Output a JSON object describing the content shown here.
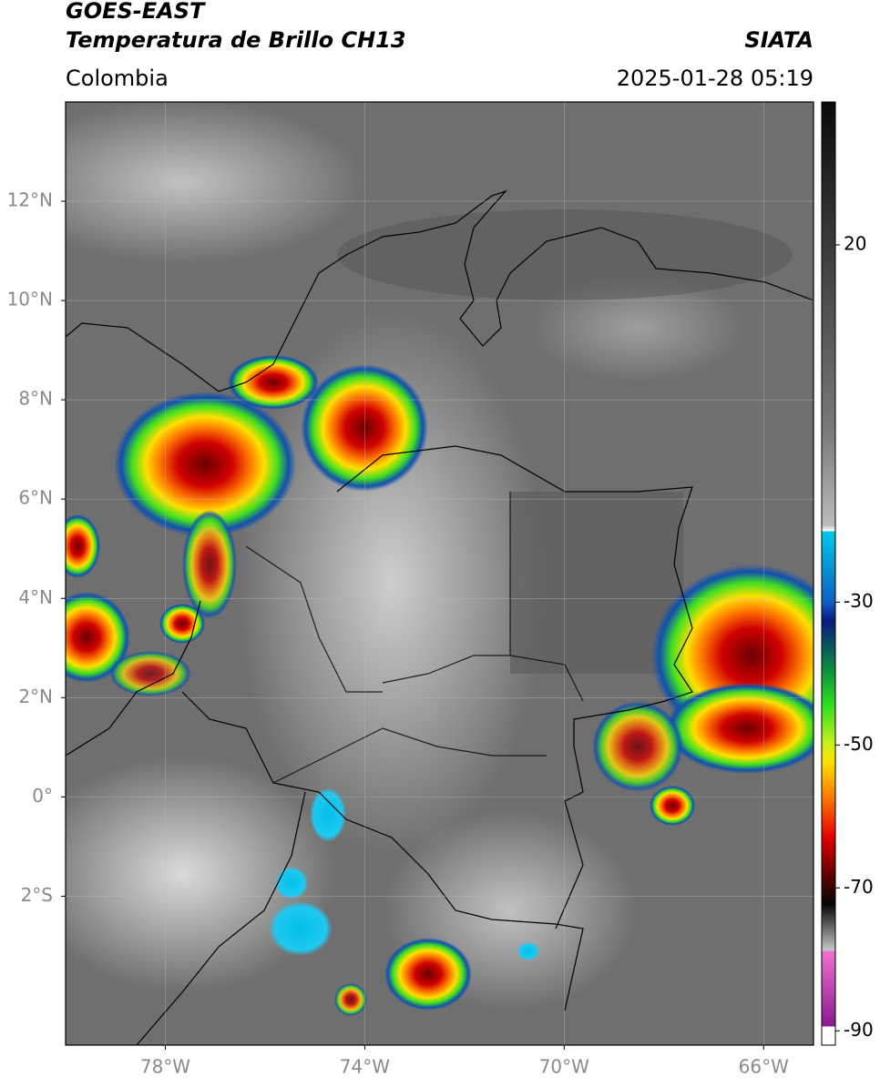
{
  "header": {
    "title": "GOES-EAST",
    "subtitle": "Temperatura de Brillo CH13",
    "region": "Colombia",
    "source": "SIATA",
    "datetime": "2025-01-28 05:19"
  },
  "map": {
    "xlim": [
      -80,
      -65
    ],
    "ylim": [
      -5,
      14
    ],
    "xticks": [
      {
        "value": -78,
        "label": "78°W"
      },
      {
        "value": -74,
        "label": "74°W"
      },
      {
        "value": -70,
        "label": "70°W"
      },
      {
        "value": -66,
        "label": "66°W"
      }
    ],
    "yticks": [
      {
        "value": 12,
        "label": "12°N"
      },
      {
        "value": 10,
        "label": "10°N"
      },
      {
        "value": 8,
        "label": "8°N"
      },
      {
        "value": 6,
        "label": "6°N"
      },
      {
        "value": 4,
        "label": "4°N"
      },
      {
        "value": 2,
        "label": "2°N"
      },
      {
        "value": 0,
        "label": "0°"
      },
      {
        "value": -2,
        "label": "2°S"
      }
    ]
  },
  "colorbar": {
    "lim": [
      -92,
      40
    ],
    "ticks": [
      20,
      -30,
      -50,
      -70,
      -90
    ]
  }
}
